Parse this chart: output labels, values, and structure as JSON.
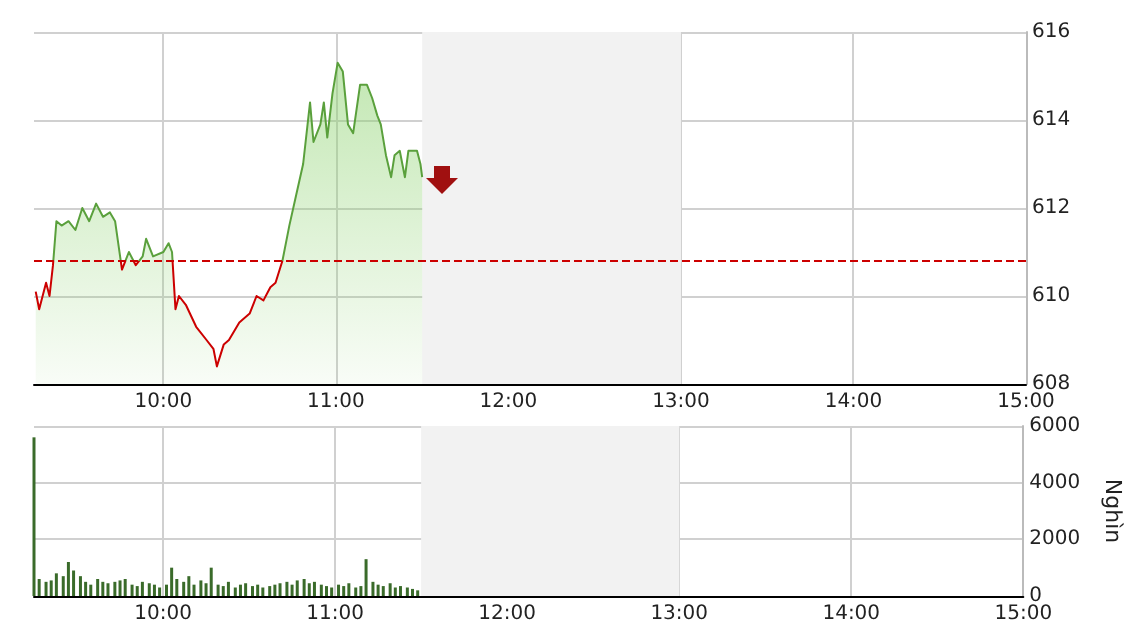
{
  "chart_data": [
    {
      "type": "area",
      "x": [
        9.26,
        9.28,
        9.32,
        9.34,
        9.36,
        9.38,
        9.41,
        9.45,
        9.49,
        9.53,
        9.57,
        9.61,
        9.65,
        9.69,
        9.72,
        9.76,
        9.8,
        9.84,
        9.88,
        9.9,
        9.94,
        10.0,
        10.03,
        10.05,
        10.07,
        10.09,
        10.13,
        10.19,
        10.25,
        10.29,
        10.31,
        10.35,
        10.38,
        10.44,
        10.5,
        10.54,
        10.58,
        10.62,
        10.65,
        10.69,
        10.73,
        10.77,
        10.81,
        10.85,
        10.87,
        10.91,
        10.93,
        10.95,
        10.98,
        11.01,
        11.04,
        11.07,
        11.1,
        11.14,
        11.18,
        11.21,
        11.24,
        11.26,
        11.29,
        11.32,
        11.34,
        11.37,
        11.4,
        11.42,
        11.47,
        11.49,
        11.5
      ],
      "series": [
        {
          "color": "#5aa03c",
          "values": [
            610.1,
            609.7,
            610.3,
            610.0,
            610.7,
            611.7,
            611.6,
            611.7,
            611.5,
            612.0,
            611.7,
            612.1,
            611.8,
            611.9,
            611.7,
            610.6,
            611.0,
            610.7,
            610.9,
            611.3,
            610.9,
            611.0,
            611.2,
            611.0,
            609.7,
            610.0,
            609.8,
            609.3,
            609.0,
            608.8,
            608.4,
            608.9,
            609.0,
            609.4,
            609.6,
            610.0,
            609.9,
            610.2,
            610.3,
            610.8,
            611.6,
            612.3,
            613.0,
            614.4,
            613.5,
            613.9,
            614.4,
            613.6,
            614.6,
            615.3,
            615.1,
            613.9,
            613.7,
            614.8,
            614.8,
            614.5,
            614.1,
            613.9,
            613.2,
            612.7,
            613.2,
            613.3,
            612.7,
            613.3,
            613.3,
            613.0,
            612.7
          ]
        }
      ],
      "xlim": [
        9.25,
        15
      ],
      "xticks": [
        {
          "value": 10,
          "label": "10:00"
        },
        {
          "value": 11,
          "label": "11:00"
        },
        {
          "value": 12,
          "label": "12:00"
        },
        {
          "value": 13,
          "label": "13:00"
        },
        {
          "value": 14,
          "label": "14:00"
        },
        {
          "value": 15,
          "label": "15:00"
        }
      ],
      "ylim": [
        608,
        616
      ],
      "yticks": [
        608,
        610,
        612,
        614,
        616
      ],
      "ref_lines": [
        {
          "axis": "y",
          "value": 610.8,
          "color": "#cc0000",
          "line_style": "dashed"
        }
      ],
      "bands": [
        {
          "axis": "x",
          "from": 11.5,
          "to": 13,
          "color": "#f2f2f2"
        }
      ],
      "grid": true,
      "marker": "none",
      "line_style": "solid"
    },
    {
      "type": "bar",
      "x": [
        9.25,
        9.28,
        9.32,
        9.35,
        9.38,
        9.42,
        9.45,
        9.48,
        9.52,
        9.55,
        9.58,
        9.62,
        9.65,
        9.68,
        9.72,
        9.75,
        9.78,
        9.82,
        9.85,
        9.88,
        9.92,
        9.95,
        9.98,
        10.02,
        10.05,
        10.08,
        10.12,
        10.15,
        10.18,
        10.22,
        10.25,
        10.28,
        10.32,
        10.35,
        10.38,
        10.42,
        10.45,
        10.48,
        10.52,
        10.55,
        10.58,
        10.62,
        10.65,
        10.68,
        10.72,
        10.75,
        10.78,
        10.82,
        10.85,
        10.88,
        10.92,
        10.95,
        10.98,
        11.02,
        11.05,
        11.08,
        11.12,
        11.15,
        11.18,
        11.22,
        11.25,
        11.28,
        11.32,
        11.35,
        11.38,
        11.42,
        11.45,
        11.48
      ],
      "series": [
        {
          "color": "#3a6b2a",
          "values": [
            5600,
            600,
            500,
            550,
            800,
            700,
            1200,
            900,
            700,
            500,
            400,
            600,
            500,
            450,
            500,
            550,
            600,
            400,
            350,
            500,
            450,
            400,
            300,
            400,
            1000,
            600,
            500,
            700,
            400,
            550,
            450,
            1000,
            400,
            350,
            500,
            300,
            400,
            450,
            350,
            400,
            300,
            350,
            400,
            450,
            500,
            400,
            550,
            600,
            450,
            500,
            400,
            350,
            300,
            400,
            350,
            450,
            300,
            350,
            1300,
            500,
            400,
            350,
            450,
            300,
            350,
            300,
            250,
            200
          ]
        }
      ],
      "xlim": [
        9.25,
        15
      ],
      "xticks": [
        {
          "value": 10,
          "label": "10:00"
        },
        {
          "value": 11,
          "label": "11:00"
        },
        {
          "value": 12,
          "label": "12:00"
        },
        {
          "value": 13,
          "label": "13:00"
        },
        {
          "value": 14,
          "label": "14:00"
        },
        {
          "value": 15,
          "label": "15:00"
        }
      ],
      "ylim": [
        0,
        6000
      ],
      "yticks": [
        0,
        2000,
        4000,
        6000
      ],
      "ylabel": "Nghìn",
      "bands": [
        {
          "axis": "x",
          "from": 11.5,
          "to": 13,
          "color": "#f2f2f2"
        }
      ],
      "grid": true
    }
  ]
}
